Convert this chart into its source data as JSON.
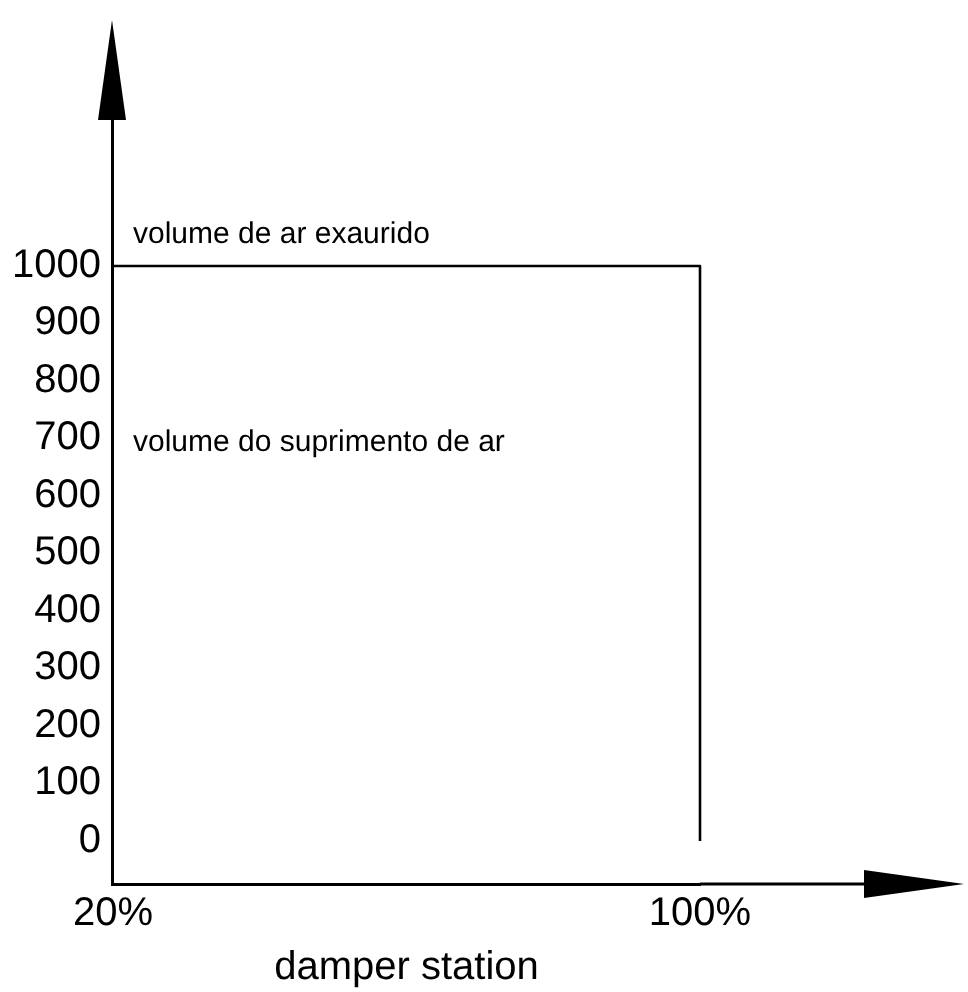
{
  "chart_data": {
    "type": "step",
    "xlabel": "damper station",
    "categories": [
      "20%",
      "100%"
    ],
    "series": [
      {
        "color": "#000000",
        "values": [
          1000,
          0
        ]
      }
    ],
    "ylim": [
      -75,
      1400
    ],
    "yticks": [
      0,
      100,
      200,
      300,
      400,
      500,
      600,
      700,
      800,
      900,
      1000
    ],
    "annotations": [
      {
        "text": "volume de ar exaurido",
        "x": "20%",
        "y": 1000
      },
      "volume do suprimento de ar"
    ],
    "grid": false,
    "legend": false,
    "marker": "none",
    "line_style": "solid"
  }
}
